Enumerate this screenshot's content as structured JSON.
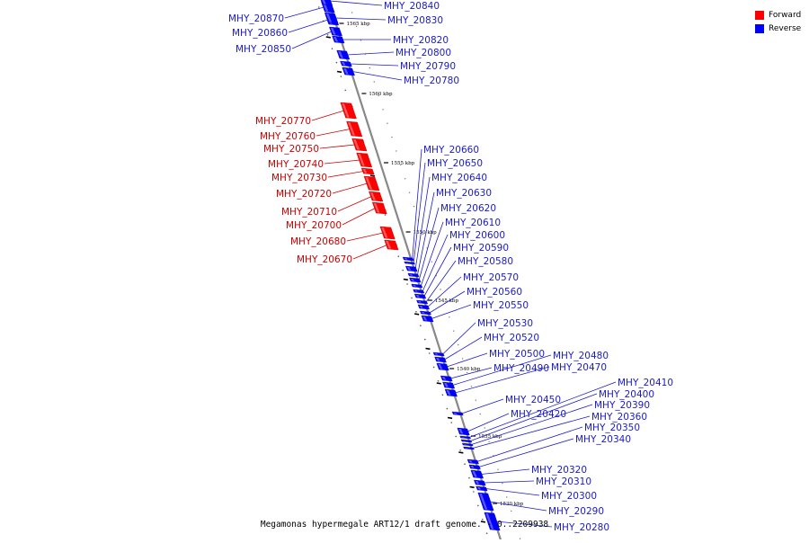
{
  "title": "Megamonas hypermegale ART12/1 draft genome. - 0..2209938",
  "colors": {
    "forward": "#ff0000",
    "reverse": "#0000ff",
    "backbone": "#888888",
    "forward_label": "#cc0000",
    "reverse_label": "#1a1acc"
  },
  "legend": [
    {
      "label": "Forward",
      "strand": "forward"
    },
    {
      "label": "Reverse",
      "strand": "reverse"
    }
  ],
  "scale": {
    "unit": "kbp",
    "ticks": [
      {
        "label": "1565 kbp",
        "kbp": 1565
      },
      {
        "label": "1560 kbp",
        "kbp": 1560
      },
      {
        "label": "1555 kbp",
        "kbp": 1555
      },
      {
        "label": "1550 kbp",
        "kbp": 1550
      },
      {
        "label": "1545 kbp",
        "kbp": 1545
      },
      {
        "label": "1540 kbp",
        "kbp": 1540
      },
      {
        "label": "1535 kbp",
        "kbp": 1535
      },
      {
        "label": "1530 kbp",
        "kbp": 1530
      }
    ]
  },
  "genes": [
    {
      "name": "MHY_20870",
      "strand": "reverse"
    },
    {
      "name": "MHY_20860",
      "strand": "reverse"
    },
    {
      "name": "MHY_20850",
      "strand": "reverse"
    },
    {
      "name": "MHY_20840",
      "strand": "reverse"
    },
    {
      "name": "MHY_20830",
      "strand": "reverse"
    },
    {
      "name": "MHY_20820",
      "strand": "reverse"
    },
    {
      "name": "MHY_20800",
      "strand": "reverse"
    },
    {
      "name": "MHY_20790",
      "strand": "reverse"
    },
    {
      "name": "MHY_20780",
      "strand": "reverse"
    },
    {
      "name": "MHY_20770",
      "strand": "forward"
    },
    {
      "name": "MHY_20760",
      "strand": "forward"
    },
    {
      "name": "MHY_20750",
      "strand": "forward"
    },
    {
      "name": "MHY_20740",
      "strand": "forward"
    },
    {
      "name": "MHY_20730",
      "strand": "forward"
    },
    {
      "name": "MHY_20720",
      "strand": "forward"
    },
    {
      "name": "MHY_20710",
      "strand": "forward"
    },
    {
      "name": "MHY_20700",
      "strand": "forward"
    },
    {
      "name": "MHY_20680",
      "strand": "forward"
    },
    {
      "name": "MHY_20670",
      "strand": "forward"
    },
    {
      "name": "MHY_20660",
      "strand": "reverse"
    },
    {
      "name": "MHY_20650",
      "strand": "reverse"
    },
    {
      "name": "MHY_20640",
      "strand": "reverse"
    },
    {
      "name": "MHY_20630",
      "strand": "reverse"
    },
    {
      "name": "MHY_20620",
      "strand": "reverse"
    },
    {
      "name": "MHY_20610",
      "strand": "reverse"
    },
    {
      "name": "MHY_20600",
      "strand": "reverse"
    },
    {
      "name": "MHY_20590",
      "strand": "reverse"
    },
    {
      "name": "MHY_20580",
      "strand": "reverse"
    },
    {
      "name": "MHY_20570",
      "strand": "reverse"
    },
    {
      "name": "MHY_20560",
      "strand": "reverse"
    },
    {
      "name": "MHY_20550",
      "strand": "reverse"
    },
    {
      "name": "MHY_20530",
      "strand": "reverse"
    },
    {
      "name": "MHY_20520",
      "strand": "reverse"
    },
    {
      "name": "MHY_20500",
      "strand": "reverse"
    },
    {
      "name": "MHY_20490",
      "strand": "reverse"
    },
    {
      "name": "MHY_20480",
      "strand": "reverse"
    },
    {
      "name": "MHY_20470",
      "strand": "reverse"
    },
    {
      "name": "MHY_20450",
      "strand": "reverse"
    },
    {
      "name": "MHY_20420",
      "strand": "reverse"
    },
    {
      "name": "MHY_20410",
      "strand": "reverse"
    },
    {
      "name": "MHY_20400",
      "strand": "reverse"
    },
    {
      "name": "MHY_20390",
      "strand": "reverse"
    },
    {
      "name": "MHY_20360",
      "strand": "reverse"
    },
    {
      "name": "MHY_20350",
      "strand": "reverse"
    },
    {
      "name": "MHY_20340",
      "strand": "reverse"
    },
    {
      "name": "MHY_20320",
      "strand": "reverse"
    },
    {
      "name": "MHY_20310",
      "strand": "reverse"
    },
    {
      "name": "MHY_20300",
      "strand": "reverse"
    },
    {
      "name": "MHY_20290",
      "strand": "reverse"
    },
    {
      "name": "MHY_20280",
      "strand": "reverse"
    }
  ]
}
